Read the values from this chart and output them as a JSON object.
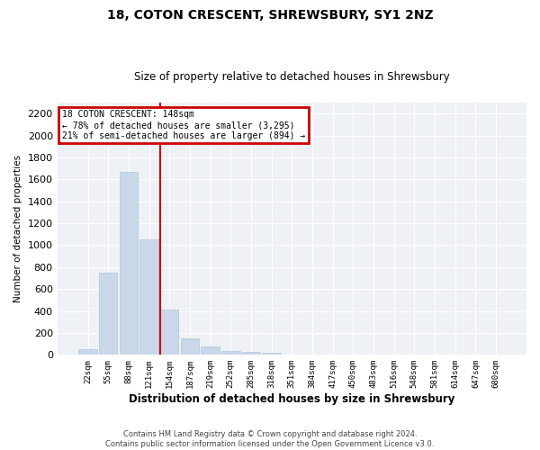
{
  "title": "18, COTON CRESCENT, SHREWSBURY, SY1 2NZ",
  "subtitle": "Size of property relative to detached houses in Shrewsbury",
  "xlabel": "Distribution of detached houses by size in Shrewsbury",
  "ylabel": "Number of detached properties",
  "bar_color": "#c8d8e8",
  "bar_edge_color": "#b0c4d8",
  "vline_color": "#cc0000",
  "annotation_line1": "18 COTON CRESCENT: 148sqm",
  "annotation_line2": "← 78% of detached houses are smaller (3,295)",
  "annotation_line3": "21% of semi-detached houses are larger (894) →",
  "annotation_box_color": "#cc0000",
  "bins": [
    "22sqm",
    "55sqm",
    "88sqm",
    "121sqm",
    "154sqm",
    "187sqm",
    "219sqm",
    "252sqm",
    "285sqm",
    "318sqm",
    "351sqm",
    "384sqm",
    "417sqm",
    "450sqm",
    "483sqm",
    "516sqm",
    "548sqm",
    "581sqm",
    "614sqm",
    "647sqm",
    "680sqm"
  ],
  "values": [
    50,
    750,
    1670,
    1050,
    410,
    150,
    80,
    35,
    25,
    20,
    5,
    2,
    2,
    0,
    0,
    0,
    0,
    0,
    0,
    0,
    0
  ],
  "ylim": [
    0,
    2300
  ],
  "yticks": [
    0,
    200,
    400,
    600,
    800,
    1000,
    1200,
    1400,
    1600,
    1800,
    2000,
    2200
  ],
  "vline_bar_index": 4,
  "figsize": [
    6.0,
    5.0
  ],
  "dpi": 100,
  "footer_line1": "Contains HM Land Registry data © Crown copyright and database right 2024.",
  "footer_line2": "Contains public sector information licensed under the Open Government Licence v3.0.",
  "plot_bg_color": "#eef2f7"
}
